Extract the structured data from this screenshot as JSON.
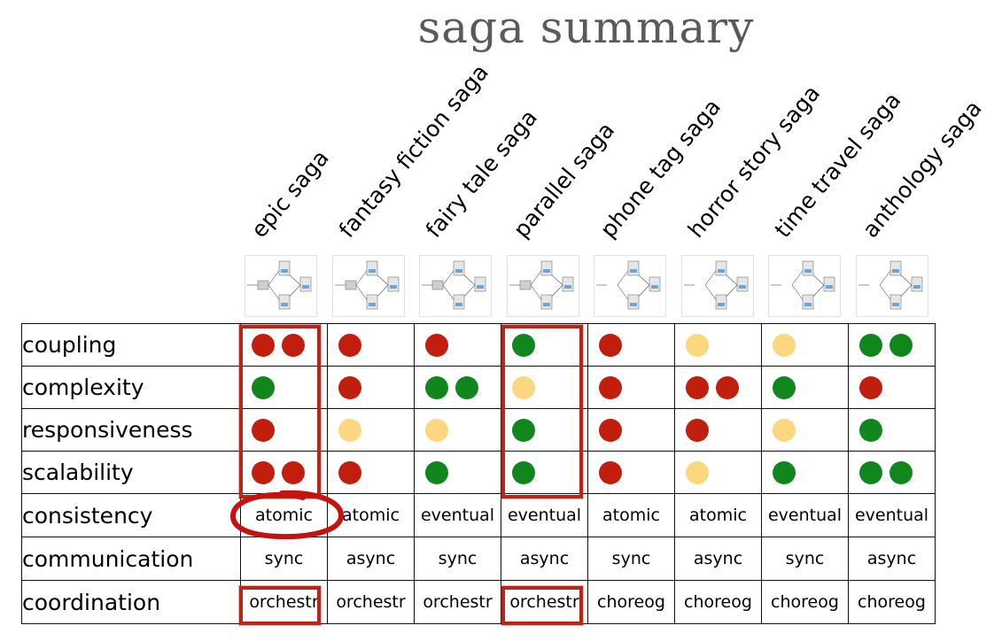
{
  "title": "saga summary",
  "columns": [
    {
      "name": "epic saga"
    },
    {
      "name": "fantasy fiction saga"
    },
    {
      "name": "fairy tale saga"
    },
    {
      "name": "parallel saga"
    },
    {
      "name": "phone tag saga"
    },
    {
      "name": "horror story saga"
    },
    {
      "name": "time travel saga"
    },
    {
      "name": "anthology saga"
    }
  ],
  "colors": {
    "red": "#c11e0d",
    "green": "#11861c",
    "yellow": "#fdd77f",
    "highlight": "#b8261a"
  },
  "rows": [
    {
      "label": "coupling",
      "type": "dots",
      "cells": [
        [
          "red",
          "red"
        ],
        [
          "red"
        ],
        [
          "red"
        ],
        [
          "green"
        ],
        [
          "red"
        ],
        [
          "yellow"
        ],
        [
          "yellow"
        ],
        [
          "green",
          "green"
        ]
      ]
    },
    {
      "label": "complexity",
      "type": "dots",
      "cells": [
        [
          "green"
        ],
        [
          "red"
        ],
        [
          "green",
          "green"
        ],
        [
          "yellow"
        ],
        [
          "red"
        ],
        [
          "red",
          "red"
        ],
        [
          "green"
        ],
        [
          "red"
        ]
      ]
    },
    {
      "label": "responsiveness",
      "type": "dots",
      "cells": [
        [
          "red"
        ],
        [
          "yellow"
        ],
        [
          "yellow"
        ],
        [
          "green"
        ],
        [
          "red"
        ],
        [
          "red"
        ],
        [
          "yellow"
        ],
        [
          "green"
        ]
      ]
    },
    {
      "label": "scalability",
      "type": "dots",
      "cells": [
        [
          "red",
          "red"
        ],
        [
          "red"
        ],
        [
          "green"
        ],
        [
          "green"
        ],
        [
          "red"
        ],
        [
          "yellow"
        ],
        [
          "green"
        ],
        [
          "green",
          "green"
        ]
      ]
    },
    {
      "label": "consistency",
      "type": "text",
      "cells": [
        "atomic",
        "atomic",
        "eventual",
        "eventual",
        "atomic",
        "atomic",
        "eventual",
        "eventual"
      ]
    },
    {
      "label": "communication",
      "type": "text",
      "cells": [
        "sync",
        "async",
        "sync",
        "async",
        "sync",
        "async",
        "sync",
        "async"
      ]
    },
    {
      "label": "coordination",
      "type": "text",
      "cells": [
        "orchestr",
        "orchestr",
        "orchestr",
        "orchestr",
        "choreog",
        "choreog",
        "choreog",
        "choreog"
      ]
    }
  ]
}
